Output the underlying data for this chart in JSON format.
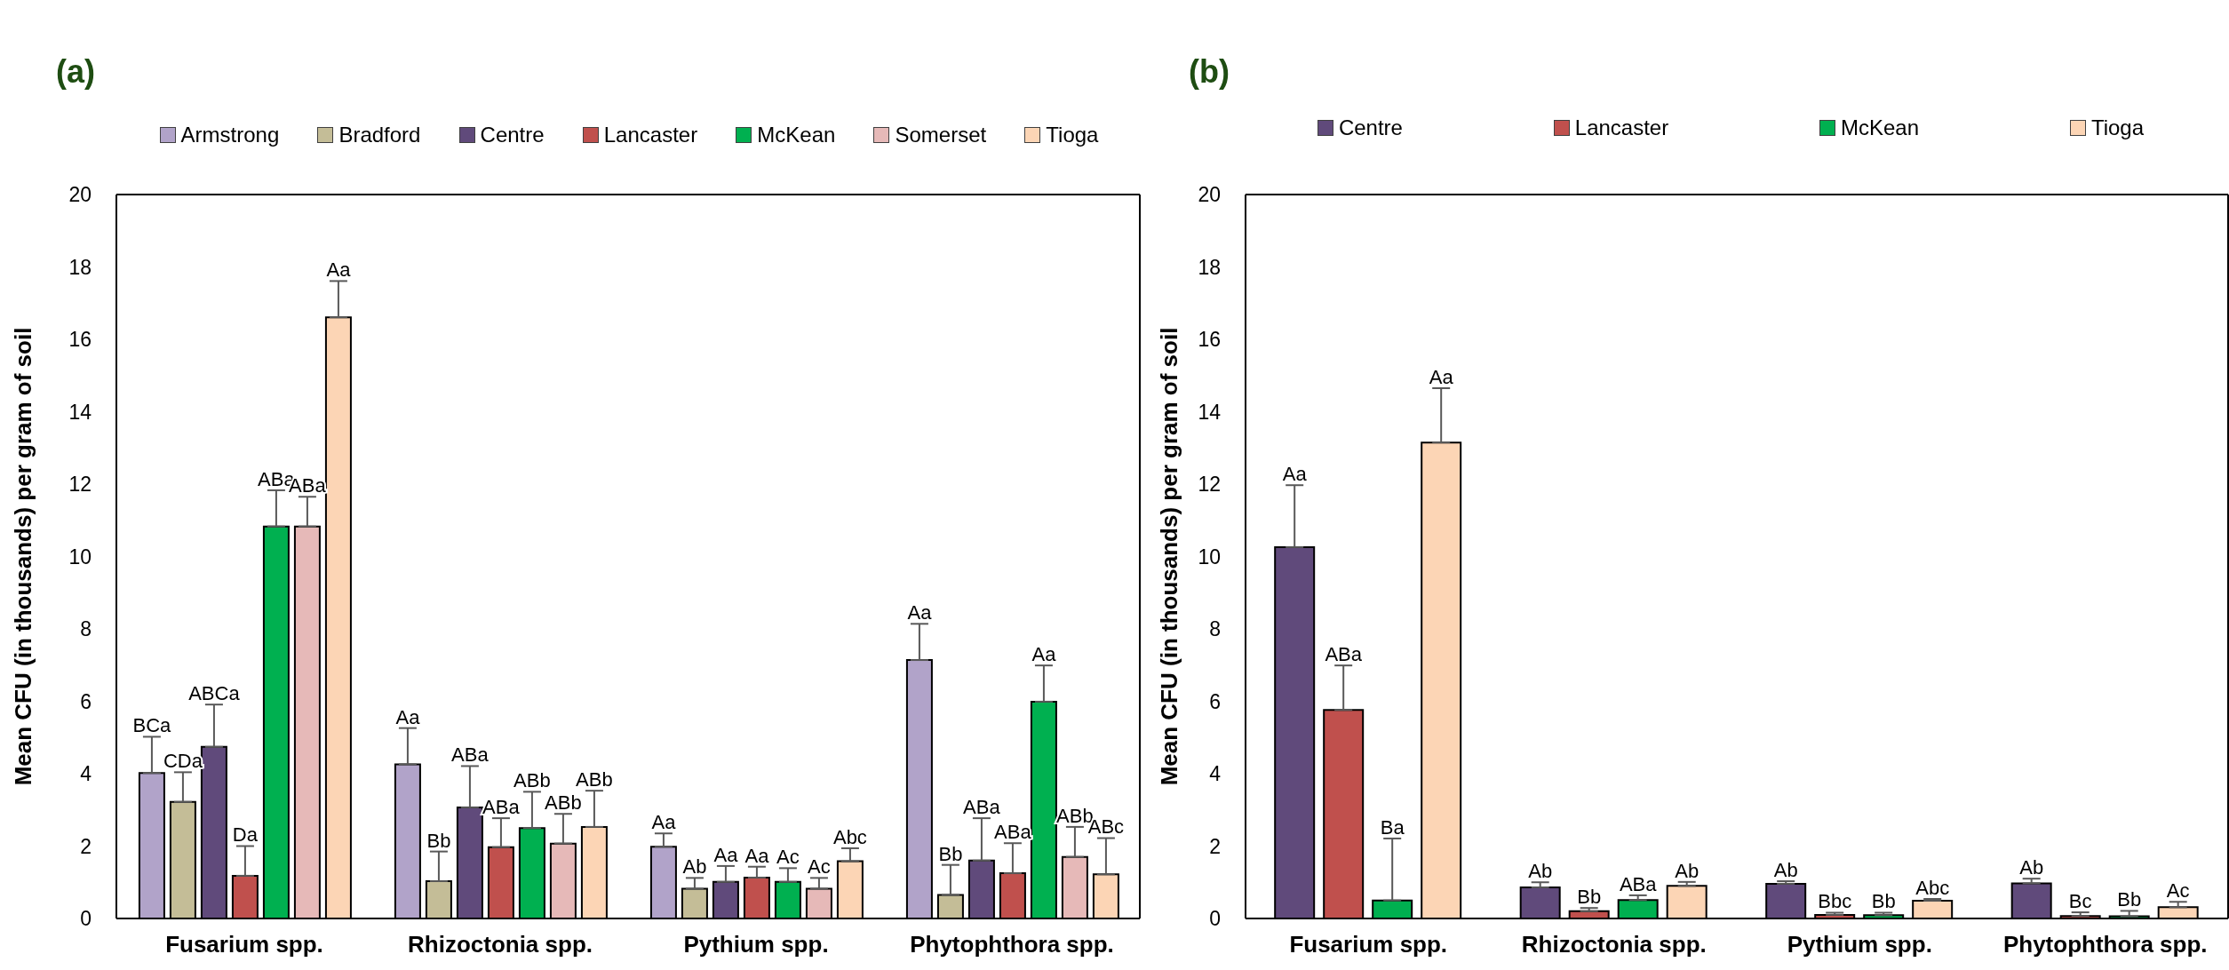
{
  "chart_data": [
    {
      "type": "bar",
      "title": "(a)",
      "ylabel": "Mean CFU (in thousands) per gram of soil",
      "categories": [
        "Fusarium spp.",
        "Rhizoctonia spp.",
        "Pythium spp.",
        "Phytophthora spp."
      ],
      "ylim": [
        0,
        20
      ],
      "yticks": [
        0,
        2,
        4,
        6,
        8,
        10,
        12,
        14,
        16,
        18,
        20
      ],
      "legend": "top",
      "series": [
        {
          "name": "Armstrong",
          "color": "#b1a3c9",
          "values": [
            4.02,
            4.26,
            1.98,
            7.14
          ],
          "errors": [
            1.0,
            1.0,
            0.37,
            1.0
          ],
          "value_labels": [
            "BCa",
            "Aa",
            "Aa",
            "Aa"
          ]
        },
        {
          "name": "Bradford",
          "color": "#c4bd97",
          "values": [
            3.22,
            1.03,
            0.82,
            0.65
          ],
          "errors": [
            0.82,
            0.82,
            0.3,
            0.83
          ],
          "value_labels": [
            "CDa",
            "Bb",
            "Ab",
            "Bb"
          ]
        },
        {
          "name": "Centre",
          "color": "#604a7b",
          "values": [
            4.74,
            3.07,
            1.01,
            1.6
          ],
          "errors": [
            1.17,
            1.14,
            0.44,
            1.17
          ],
          "value_labels": [
            "ABCa",
            "ABa",
            "Aa",
            "ABa"
          ]
        },
        {
          "name": "Lancaster",
          "color": "#c0504d",
          "values": [
            1.18,
            1.97,
            1.13,
            1.25
          ],
          "errors": [
            0.82,
            0.8,
            0.3,
            0.83
          ],
          "value_labels": [
            "Da",
            "ABa",
            "Aa",
            "ABa"
          ]
        },
        {
          "name": "McKean",
          "color": "#00b050",
          "values": [
            10.83,
            2.5,
            1.01,
            5.99
          ],
          "errors": [
            1.0,
            1.0,
            0.38,
            1.0
          ],
          "value_labels": [
            "ABa",
            "ABb",
            "Ac",
            "Aa"
          ]
        },
        {
          "name": "Somerset",
          "color": "#e6b9b8",
          "values": [
            10.83,
            2.07,
            0.82,
            1.7
          ],
          "errors": [
            0.82,
            0.82,
            0.3,
            0.83
          ],
          "value_labels": [
            "ABa",
            "ABb",
            "Ac",
            "ABb"
          ]
        },
        {
          "name": "Tioga",
          "color": "#fcd5b5",
          "values": [
            16.61,
            2.53,
            1.58,
            1.22
          ],
          "errors": [
            1.0,
            1.0,
            0.36,
            1.0
          ],
          "value_labels": [
            "Aa",
            "ABb",
            "Abc",
            "ABc"
          ]
        }
      ]
    },
    {
      "type": "bar",
      "title": "(b)",
      "ylabel": "Mean CFU (in thousands) per gram of soil",
      "categories": [
        "Fusarium spp.",
        "Rhizoctonia spp.",
        "Pythium spp.",
        "Phytophthora spp."
      ],
      "ylim": [
        0,
        20
      ],
      "yticks": [
        0,
        2,
        4,
        6,
        8,
        10,
        12,
        14,
        16,
        18,
        20
      ],
      "legend": "top",
      "series": [
        {
          "name": "Centre",
          "color": "#604a7b",
          "values": [
            10.26,
            0.86,
            0.96,
            0.97
          ],
          "errors": [
            1.71,
            0.14,
            0.07,
            0.13
          ],
          "value_labels": [
            "Aa",
            "Ab",
            "Ab",
            "Ab"
          ]
        },
        {
          "name": "Lancaster",
          "color": "#c0504d",
          "values": [
            5.76,
            0.2,
            0.1,
            0.07
          ],
          "errors": [
            1.23,
            0.09,
            0.06,
            0.1
          ],
          "value_labels": [
            "ABa",
            "Bb",
            "Bbc",
            "Bc"
          ]
        },
        {
          "name": "McKean",
          "color": "#00b050",
          "values": [
            0.5,
            0.51,
            0.09,
            0.06
          ],
          "errors": [
            1.71,
            0.13,
            0.07,
            0.15
          ],
          "value_labels": [
            "Ba",
            "ABa",
            "Bb",
            "Bb"
          ]
        },
        {
          "name": "Tioga",
          "color": "#fcd5b5",
          "values": [
            13.15,
            0.9,
            0.49,
            0.31
          ],
          "errors": [
            1.5,
            0.11,
            0.05,
            0.15
          ],
          "value_labels": [
            "Aa",
            "Ab",
            "Abc",
            "Ac"
          ]
        }
      ]
    }
  ]
}
